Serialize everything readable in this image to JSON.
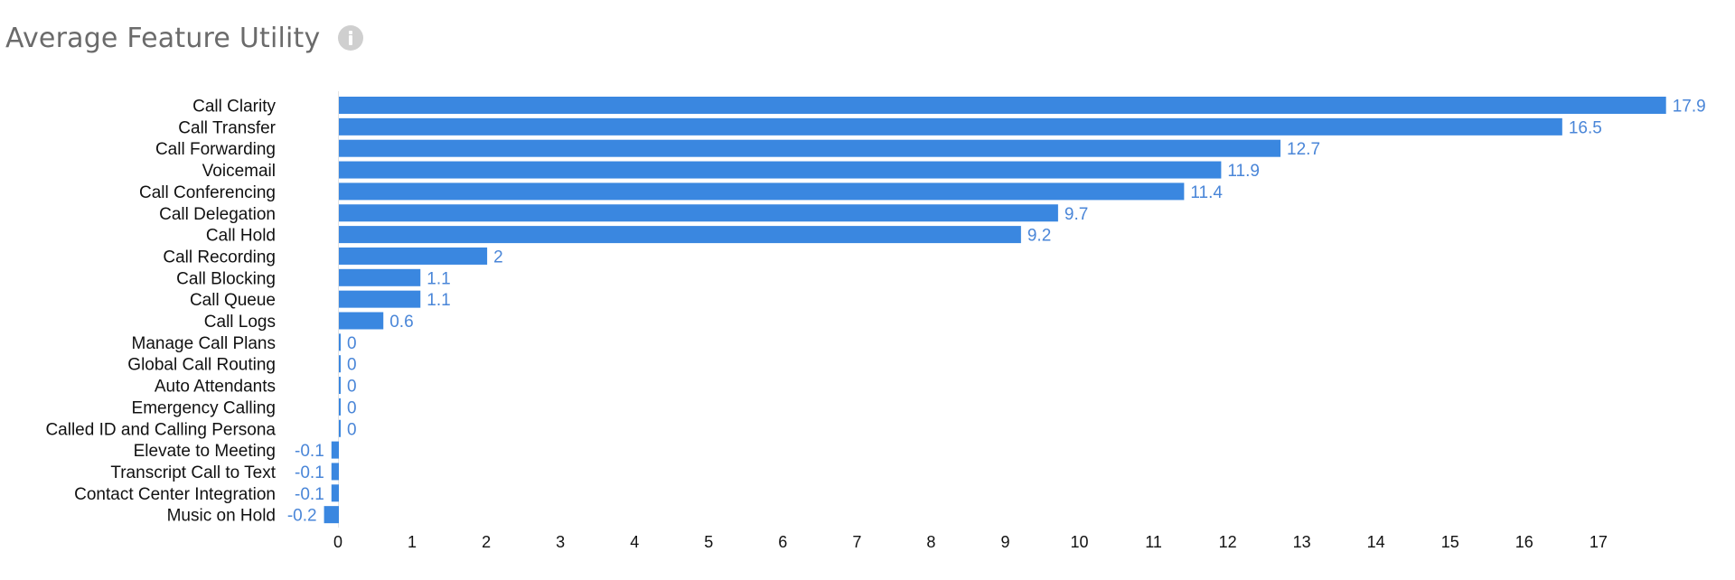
{
  "header": {
    "title": "Average Feature Utility",
    "info_icon": "info-icon"
  },
  "colors": {
    "bar": "#3a87e0",
    "value_label": "#4a86d8",
    "zero_line": "#e3e3e3",
    "title": "#6b6b6b",
    "icon": "#cfcfcf"
  },
  "chart_data": {
    "type": "bar",
    "orientation": "horizontal",
    "title": "Average Feature Utility",
    "xlabel": "",
    "ylabel": "",
    "xlim": [
      -0.2,
      17.9
    ],
    "x_ticks": [
      "0",
      "1",
      "2",
      "3",
      "4",
      "5",
      "6",
      "7",
      "8",
      "9",
      "10",
      "11",
      "12",
      "13",
      "14",
      "15",
      "16",
      "17"
    ],
    "grid": false,
    "categories": [
      "Call Clarity",
      "Call Transfer",
      "Call Forwarding",
      "Voicemail",
      "Call Conferencing",
      "Call Delegation",
      "Call Hold",
      "Call Recording",
      "Call Blocking",
      "Call Queue",
      "Call Logs",
      "Manage Call Plans",
      "Global Call Routing",
      "Auto Attendants",
      "Emergency Calling",
      "Called ID and Calling Persona",
      "Elevate to Meeting",
      "Transcript Call to Text",
      "Contact Center Integration",
      "Music on Hold"
    ],
    "values": [
      17.9,
      16.5,
      12.7,
      11.9,
      11.4,
      9.7,
      9.2,
      2,
      1.1,
      1.1,
      0.6,
      0,
      0,
      0,
      0,
      0,
      -0.1,
      -0.1,
      -0.1,
      -0.2
    ],
    "value_labels": [
      "17.9",
      "16.5",
      "12.7",
      "11.9",
      "11.4",
      "9.7",
      "9.2",
      "2",
      "1.1",
      "1.1",
      "0.6",
      "0",
      "0",
      "0",
      "0",
      "0",
      "-0.1",
      "-0.1",
      "-0.1",
      "-0.2"
    ]
  }
}
